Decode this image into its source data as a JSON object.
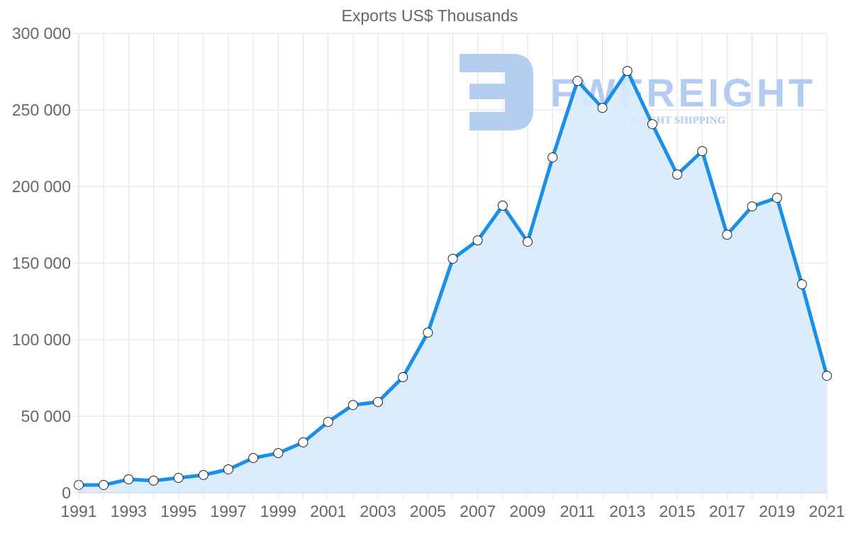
{
  "chart_data": {
    "type": "area",
    "title": "Exports US$ Thousands",
    "xlabel": "",
    "ylabel": "",
    "ylim": [
      0,
      300000
    ],
    "xlim": [
      1991,
      2021
    ],
    "grid": true,
    "legend": "none",
    "y_ticks": [
      0,
      50000,
      100000,
      150000,
      200000,
      250000,
      300000
    ],
    "y_tick_labels": [
      "0",
      "50 000",
      "100 000",
      "150 000",
      "200 000",
      "250 000",
      "300 000"
    ],
    "x_tick_labels": [
      "1991",
      "1993",
      "1995",
      "1997",
      "1999",
      "2001",
      "2003",
      "2005",
      "2007",
      "2009",
      "2011",
      "2013",
      "2015",
      "2017",
      "2019",
      "2021"
    ],
    "categories": [
      1991,
      1992,
      1993,
      1994,
      1995,
      1996,
      1997,
      1998,
      1999,
      2000,
      2001,
      2002,
      2003,
      2004,
      2005,
      2006,
      2007,
      2008,
      2009,
      2010,
      2011,
      2012,
      2013,
      2014,
      2015,
      2016,
      2017,
      2018,
      2019,
      2020,
      2021
    ],
    "series": [
      {
        "name": "Exports US$ Thousands",
        "values": [
          5100,
          5100,
          8800,
          7900,
          9700,
          11600,
          15300,
          22700,
          25900,
          32900,
          46300,
          57300,
          59300,
          75500,
          104600,
          152800,
          164800,
          187500,
          163900,
          219000,
          268900,
          251300,
          275400,
          240700,
          207800,
          223100,
          168500,
          187000,
          192600,
          136100,
          76400
        ]
      }
    ]
  },
  "colors": {
    "line": "#1a8fe8",
    "fill": "#d7ebfc",
    "grid": "#e2e2e2",
    "axis": "#cfcfcf",
    "text": "#666666",
    "point_fill": "#ffffff",
    "point_stroke": "#222222",
    "watermark": "#a9c4f0"
  },
  "watermark": {
    "brand": "FWFREIGHT",
    "tagline": "FREIGHT SHIPPING"
  }
}
